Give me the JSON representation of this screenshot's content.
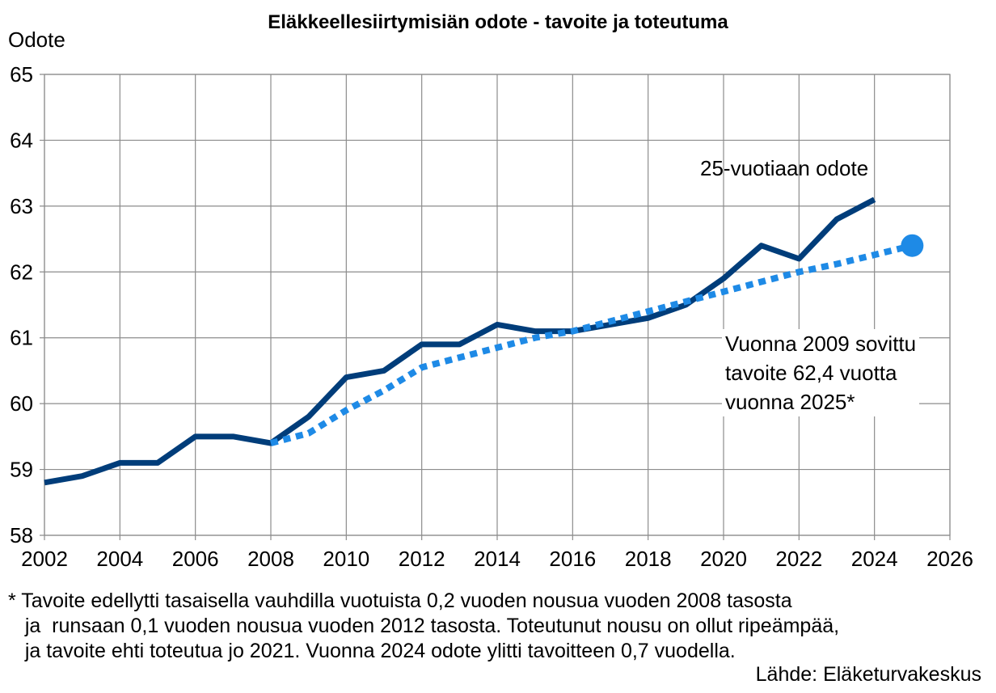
{
  "chart_data": {
    "type": "line",
    "title": "Eläkkeellesiirtymisiän odote - tavoite ja toteutuma",
    "ylabel": "Odote",
    "xlabel": "",
    "xlim": [
      2002,
      2026
    ],
    "ylim": [
      58,
      65
    ],
    "x_ticks": [
      "2002",
      "2004",
      "2006",
      "2008",
      "2010",
      "2012",
      "2014",
      "2016",
      "2018",
      "2020",
      "2022",
      "2024",
      "2026"
    ],
    "y_ticks": [
      "58",
      "59",
      "60",
      "61",
      "62",
      "63",
      "64",
      "65"
    ],
    "grid": true,
    "series": [
      {
        "name": "25-vuotiaan odote",
        "style": "solid",
        "color": "#003d7a",
        "x": [
          2002,
          2003,
          2004,
          2005,
          2006,
          2007,
          2008,
          2009,
          2010,
          2011,
          2012,
          2013,
          2014,
          2015,
          2016,
          2017,
          2018,
          2019,
          2020,
          2021,
          2022,
          2023,
          2024
        ],
        "y": [
          58.8,
          58.9,
          59.1,
          59.1,
          59.5,
          59.5,
          59.4,
          59.8,
          60.4,
          60.5,
          60.9,
          60.9,
          61.2,
          61.1,
          61.1,
          61.2,
          61.3,
          61.5,
          61.9,
          62.4,
          62.2,
          62.8,
          63.1
        ]
      },
      {
        "name": "Vuonna 2009 sovittu tavoite 62,4 vuotta vuonna 2025*",
        "style": "dotted",
        "color": "#1e8ae6",
        "x": [
          2008,
          2009,
          2010,
          2011,
          2012,
          2013,
          2014,
          2015,
          2016,
          2017,
          2018,
          2019,
          2020,
          2021,
          2022,
          2023,
          2024,
          2025
        ],
        "y": [
          59.4,
          59.55,
          59.9,
          60.2,
          60.55,
          60.7,
          60.85,
          61.0,
          61.1,
          61.25,
          61.4,
          61.55,
          61.7,
          61.85,
          62.0,
          62.12,
          62.26,
          62.4
        ]
      }
    ],
    "marker": {
      "x": 2025,
      "y": 62.4,
      "color": "#1e8ae6"
    },
    "annotations": {
      "actual_label": "25-vuotiaan odote",
      "target_label": "Vuonna 2009 sovittu\ntavoite 62,4 vuotta\nvuonna 2025*"
    }
  },
  "footnote": {
    "line1": "* Tavoite edellytti tasaisella vauhdilla vuotuista 0,2 vuoden nousua vuoden 2008 tasosta",
    "line2": "   ja  runsaan 0,1 vuoden nousua vuoden 2012 tasosta. Toteutunut nousu on ollut ripeämpää,",
    "line3": "   ja tavoite ehti toteutua jo 2021. Vuonna 2024 odote ylitti tavoitteen 0,7 vuodella."
  },
  "source": "Lähde: Eläketurvakeskus"
}
